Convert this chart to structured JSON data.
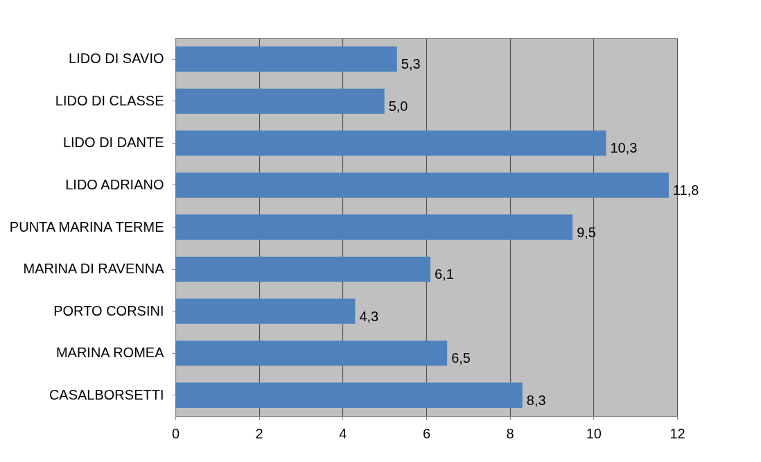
{
  "chart_data": {
    "type": "bar",
    "orientation": "horizontal",
    "categories": [
      "LIDO DI SAVIO",
      "LIDO DI CLASSE",
      "LIDO DI DANTE",
      "LIDO ADRIANO",
      "PUNTA MARINA TERME",
      "MARINA DI RAVENNA",
      "PORTO CORSINI",
      "MARINA ROMEA",
      "CASALBORSETTI"
    ],
    "values": [
      5.3,
      5.0,
      10.3,
      11.8,
      9.5,
      6.1,
      4.3,
      6.5,
      8.3
    ],
    "value_labels": [
      "5,3",
      "5,0",
      "10,3",
      "11,8",
      "9,5",
      "6,1",
      "4,3",
      "6,5",
      "8,3"
    ],
    "color": "#4f81bd",
    "xlim": [
      0,
      12
    ],
    "xticks": [
      0,
      2,
      4,
      6,
      8,
      10,
      12
    ],
    "grid": "x"
  }
}
